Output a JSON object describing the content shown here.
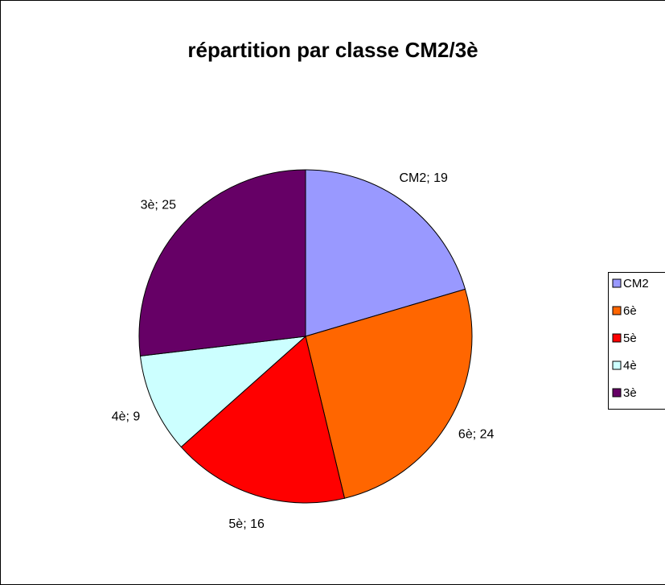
{
  "chart_data": {
    "type": "pie",
    "title": "répartition par classe CM2/3è",
    "categories": [
      "CM2",
      "6è",
      "5è",
      "4è",
      "3è"
    ],
    "values": [
      19,
      24,
      16,
      9,
      25
    ],
    "value_labels": [
      "CM2; 19",
      "6è; 24",
      "5è; 16",
      "4è; 9",
      "3è; 25"
    ],
    "colors": [
      "#9999ff",
      "#ff6600",
      "#ff0000",
      "#ccffff",
      "#660066"
    ],
    "legend": "right"
  }
}
